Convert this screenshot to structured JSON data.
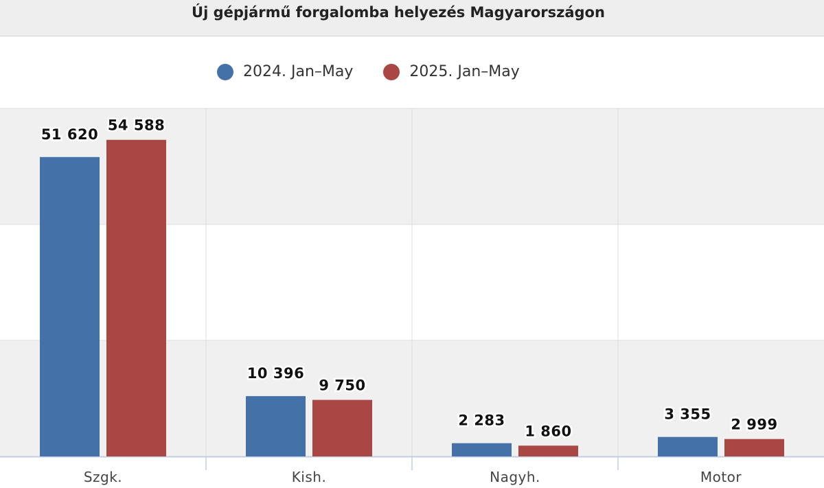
{
  "chart_data": {
    "type": "bar",
    "title": "Új gépjármű forgalomba helyezés Magyarországon",
    "categories": [
      "Szgk.",
      "Kish.",
      "Nagyh.",
      "Motor"
    ],
    "series": [
      {
        "name": "2024. Jan–May",
        "color": "#4472a8",
        "values": [
          51620,
          10396,
          2283,
          3355
        ],
        "labels": [
          "51 620",
          "10 396",
          "2 283",
          "3 355"
        ]
      },
      {
        "name": "2025. Jan–May",
        "color": "#a84744",
        "values": [
          54588,
          9750,
          1860,
          2999
        ],
        "labels": [
          "54 588",
          "9 750",
          "1 860",
          "2 999"
        ]
      }
    ],
    "legend_position": "top",
    "grid": true
  }
}
